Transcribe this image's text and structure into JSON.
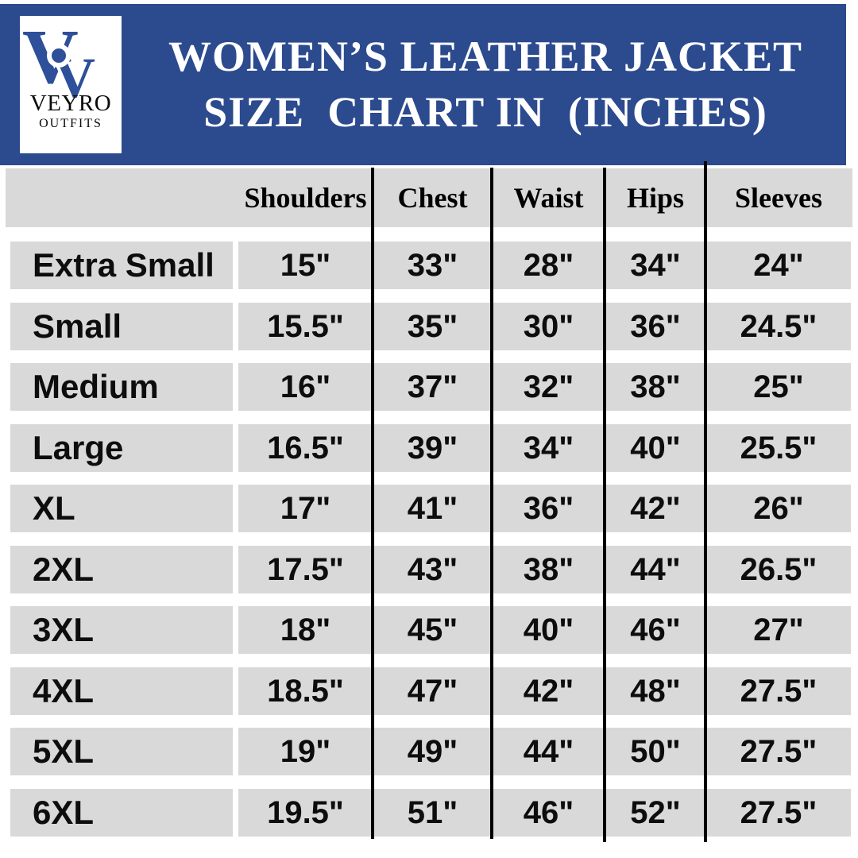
{
  "brand": {
    "monogram": "V",
    "name": "VEYRO",
    "subtitle": "OUTFITS"
  },
  "header": {
    "title_line1": "WOMEN’S LEATHER JACKET",
    "title_line2": "SIZE  CHART IN  (INCHES)"
  },
  "colors": {
    "banner_blue": "#2c4a8e",
    "logo_blue": "#2e4f99",
    "band_gray": "#d9d9d9",
    "rule_black": "#000000",
    "title_white": "#ffffff"
  },
  "chart_data": {
    "type": "table",
    "columns": [
      "Shoulders",
      "Chest",
      "Waist",
      "Hips",
      "Sleeves"
    ],
    "rows": [
      {
        "size": "Extra Small",
        "values": [
          "15\"",
          "33\"",
          "28\"",
          "34\"",
          "24\""
        ]
      },
      {
        "size": "Small",
        "values": [
          "15.5\"",
          "35\"",
          "30\"",
          "36\"",
          "24.5\""
        ]
      },
      {
        "size": "Medium",
        "values": [
          "16\"",
          "37\"",
          "32\"",
          "38\"",
          "25\""
        ]
      },
      {
        "size": "Large",
        "values": [
          "16.5\"",
          "39\"",
          "34\"",
          "40\"",
          "25.5\""
        ]
      },
      {
        "size": "XL",
        "values": [
          "17\"",
          "41\"",
          "36\"",
          "42\"",
          "26\""
        ]
      },
      {
        "size": "2XL",
        "values": [
          "17.5\"",
          "43\"",
          "38\"",
          "44\"",
          "26.5\""
        ]
      },
      {
        "size": "3XL",
        "values": [
          "18\"",
          "45\"",
          "40\"",
          "46\"",
          "27\""
        ]
      },
      {
        "size": "4XL",
        "values": [
          "18.5\"",
          "47\"",
          "42\"",
          "48\"",
          "27.5\""
        ]
      },
      {
        "size": "5XL",
        "values": [
          "19\"",
          "49\"",
          "44\"",
          "50\"",
          "27.5\""
        ]
      },
      {
        "size": "6XL",
        "values": [
          "19.5\"",
          "51\"",
          "46\"",
          "52\"",
          "27.5\""
        ]
      }
    ]
  }
}
